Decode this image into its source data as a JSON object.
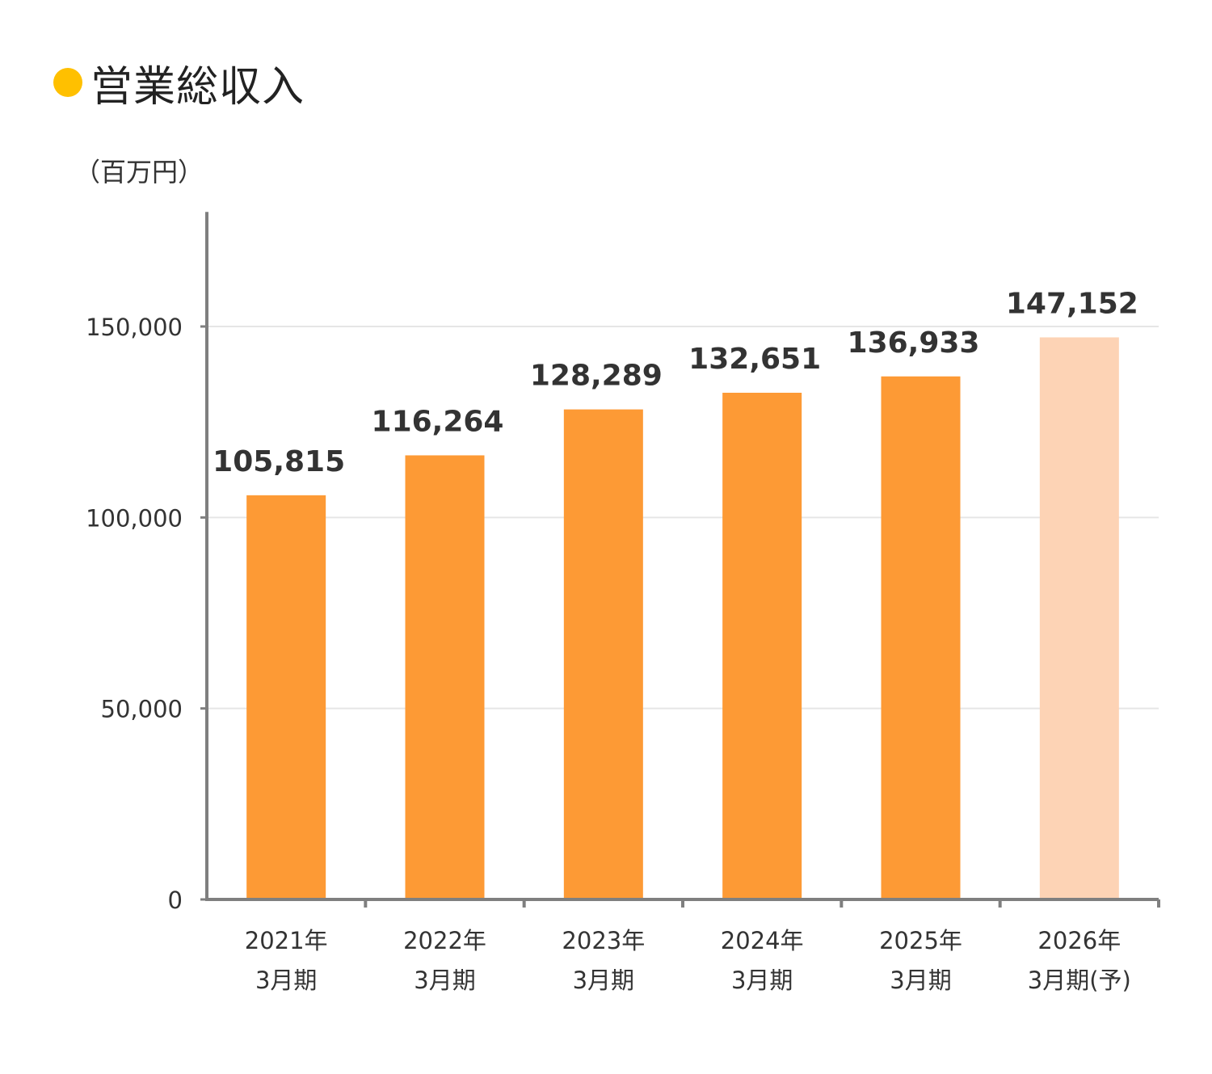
{
  "title": "営業総収入",
  "unit_label": "（百万円）",
  "colors": {
    "title_dot": "#FFC000",
    "bar_actual": "#FD9A35",
    "bar_forecast": "#FDD3B5",
    "axis": "#7F7F7F",
    "grid": "#E6E6E6",
    "text": "#333333"
  },
  "chart_data": {
    "type": "bar",
    "title": "営業総収入",
    "ylabel": "（百万円）",
    "ylim": [
      0,
      180000
    ],
    "yticks": [
      0,
      50000,
      100000,
      150000
    ],
    "ytick_labels": [
      "0",
      "50,000",
      "100,000",
      "150,000"
    ],
    "grid": true,
    "categories": [
      [
        "2021年",
        "3月期"
      ],
      [
        "2022年",
        "3月期"
      ],
      [
        "2023年",
        "3月期"
      ],
      [
        "2024年",
        "3月期"
      ],
      [
        "2025年",
        "3月期"
      ],
      [
        "2026年",
        "3月期(予)"
      ]
    ],
    "values": [
      105815,
      116264,
      128289,
      132651,
      136933,
      147152
    ],
    "value_labels": [
      "105,815",
      "116,264",
      "128,289",
      "132,651",
      "136,933",
      "147,152"
    ],
    "forecast": [
      false,
      false,
      false,
      false,
      false,
      true
    ]
  }
}
